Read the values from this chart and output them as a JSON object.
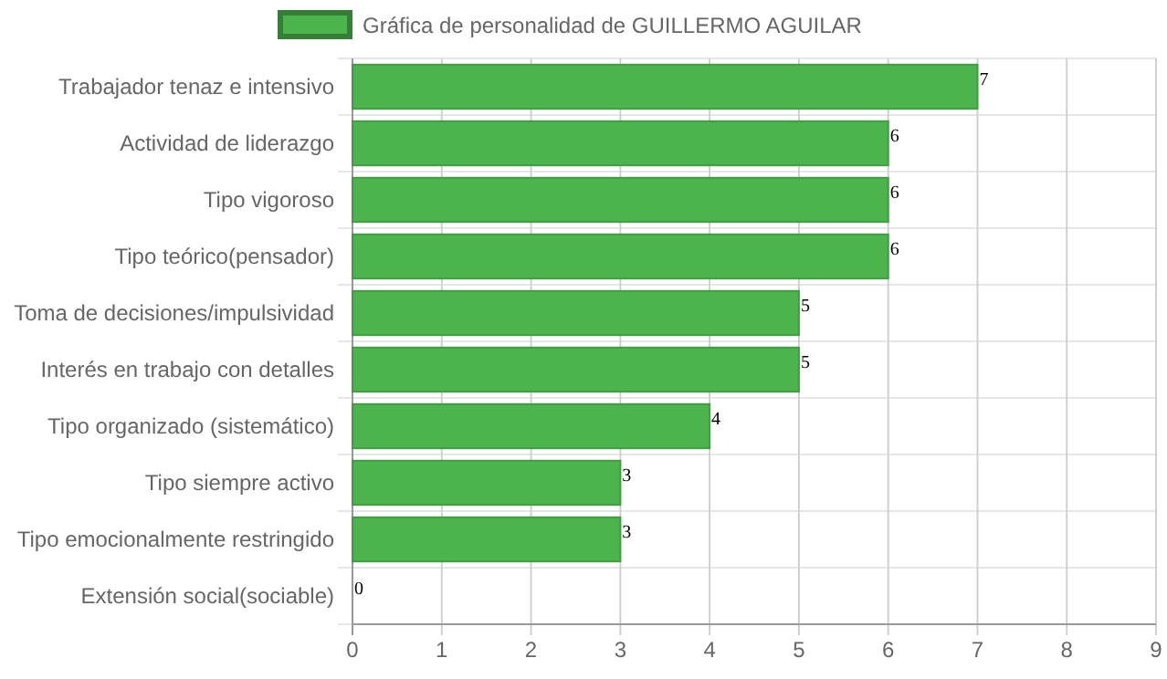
{
  "chart_data": {
    "type": "bar",
    "orientation": "horizontal",
    "categories": [
      "Trabajador tenaz e intensivo",
      "Actividad de liderazgo",
      "Tipo vigoroso",
      "Tipo teórico(pensador)",
      "Toma de decisiones/impulsividad",
      "Interés en trabajo con detalles",
      "Tipo organizado (sistemático)",
      "Tipo siempre activo",
      "Tipo emocionalmente restringido",
      "Extensión social(sociable)"
    ],
    "series": [
      {
        "name": "Gráfica de personalidad de GUILLERMO AGUILAR",
        "color": "#4cb44c",
        "values": [
          7,
          6,
          6,
          6,
          5,
          5,
          4,
          3,
          3,
          0
        ]
      }
    ],
    "xlim": [
      0,
      9
    ],
    "xticks": [
      0,
      1,
      2,
      3,
      4,
      5,
      6,
      7,
      8,
      9
    ],
    "grid": true,
    "legend": "top",
    "data_labels": true
  }
}
